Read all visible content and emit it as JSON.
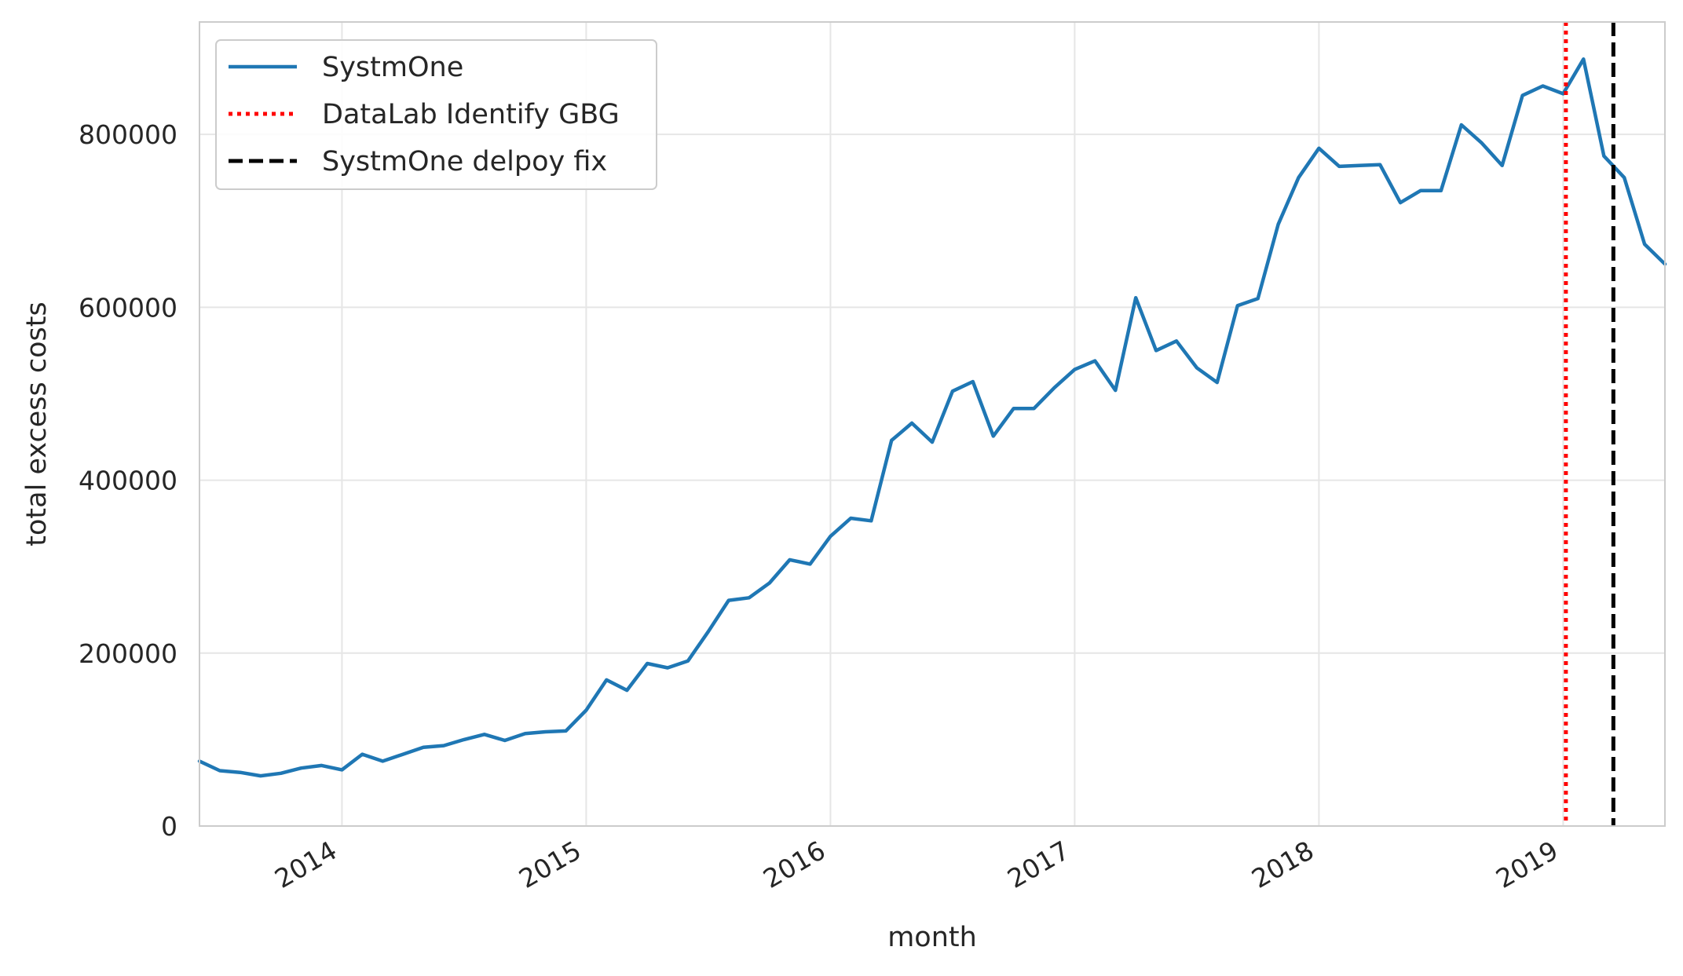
{
  "chart_data": {
    "type": "line",
    "xlabel": "month",
    "ylabel": "total excess costs",
    "xlim": [
      "2013-06",
      "2019-06"
    ],
    "ylim": [
      0,
      930000
    ],
    "grid": true,
    "legend_position": "top-left",
    "x_ticks": [
      "2014",
      "2015",
      "2016",
      "2017",
      "2018",
      "2019"
    ],
    "y_ticks": [
      "0",
      "200000",
      "400000",
      "600000",
      "800000"
    ],
    "series": [
      {
        "name": "SystmOne",
        "color": "#1f77b4",
        "x": [
          "2013-06",
          "2013-07",
          "2013-08",
          "2013-09",
          "2013-10",
          "2013-11",
          "2013-12",
          "2014-01",
          "2014-02",
          "2014-03",
          "2014-04",
          "2014-05",
          "2014-06",
          "2014-07",
          "2014-08",
          "2014-09",
          "2014-10",
          "2014-11",
          "2014-12",
          "2015-01",
          "2015-02",
          "2015-03",
          "2015-04",
          "2015-05",
          "2015-06",
          "2015-07",
          "2015-08",
          "2015-09",
          "2015-10",
          "2015-11",
          "2015-12",
          "2016-01",
          "2016-02",
          "2016-03",
          "2016-04",
          "2016-05",
          "2016-06",
          "2016-07",
          "2016-08",
          "2016-09",
          "2016-10",
          "2016-11",
          "2016-12",
          "2017-01",
          "2017-02",
          "2017-03",
          "2017-04",
          "2017-05",
          "2017-06",
          "2017-07",
          "2017-08",
          "2017-09",
          "2017-10",
          "2017-11",
          "2017-12",
          "2018-01",
          "2018-02",
          "2018-03",
          "2018-04",
          "2018-05",
          "2018-06",
          "2018-07",
          "2018-08",
          "2018-09",
          "2018-10",
          "2018-11",
          "2018-12",
          "2019-01",
          "2019-02",
          "2019-03",
          "2019-04",
          "2019-05",
          "2019-06"
        ],
        "y": [
          75000,
          64000,
          62000,
          58000,
          61000,
          67000,
          70000,
          65000,
          83000,
          75000,
          83000,
          91000,
          93000,
          100000,
          106000,
          99000,
          107000,
          109000,
          110000,
          134000,
          169000,
          157000,
          188000,
          183000,
          191000,
          225000,
          261000,
          264000,
          281000,
          308000,
          303000,
          335000,
          356000,
          353000,
          446000,
          466000,
          444000,
          503000,
          514000,
          451000,
          483000,
          483000,
          507000,
          528000,
          538000,
          504000,
          611000,
          550000,
          561000,
          530000,
          513000,
          602000,
          610000,
          696000,
          750000,
          784000,
          763000,
          764000,
          765000,
          721000,
          735000,
          735000,
          811000,
          790000,
          764000,
          845000,
          856000,
          847000,
          887000,
          775000,
          750000,
          673000,
          650000
        ]
      }
    ],
    "vlines": [
      {
        "name": "DataLab Identify GBG",
        "x": "2019-01-05",
        "color": "#ff0000",
        "style": "dotted"
      },
      {
        "name": "SystmOne delpoy fix",
        "x": "2019-03-15",
        "color": "#000000",
        "style": "dashed"
      }
    ]
  }
}
